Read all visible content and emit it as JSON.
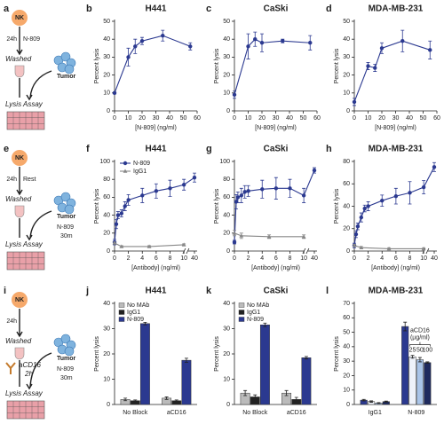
{
  "schematics": [
    {
      "panel": "a",
      "nk": "NK",
      "time": "24h",
      "treatment": "N-809",
      "washed": "Washed",
      "tumor": "Tumor",
      "assay": "Lysis Assay"
    },
    {
      "panel": "e",
      "nk": "NK",
      "time": "24h",
      "treatment": "Rest",
      "washed": "Washed",
      "tumor": "Tumor",
      "tumor_treatment": "N-809",
      "tumor_time": "30m",
      "assay": "Lysis Assay"
    },
    {
      "panel": "i",
      "nk": "NK",
      "time": "24h",
      "washed": "Washed",
      "block": "aCD16",
      "block_time": "2h",
      "tumor": "Tumor",
      "tumor_treatment": "N-809",
      "tumor_time": "30m",
      "assay": "Lysis Assay"
    }
  ],
  "chart_data": [
    {
      "type": "line",
      "panel": "b",
      "title": "H441",
      "xlabel": "[N-809] (ng/ml)",
      "ylabel": "Percent lysis",
      "xlim": [
        0,
        60
      ],
      "xticks": [
        0,
        10,
        20,
        30,
        40,
        50,
        60
      ],
      "ylim": [
        0,
        50
      ],
      "yticks": [
        0,
        10,
        20,
        30,
        40,
        50
      ],
      "series": [
        {
          "color": "#2b3990",
          "marker": "circle",
          "x": [
            0,
            10,
            15,
            20,
            35,
            55
          ],
          "values": [
            10,
            30,
            36,
            39,
            42,
            36
          ],
          "errors": [
            0.5,
            5,
            4,
            2,
            3,
            2
          ]
        }
      ]
    },
    {
      "type": "line",
      "panel": "c",
      "title": "CaSki",
      "xlabel": "[N-809] (ng/ml)",
      "ylabel": "Percent lysis",
      "xlim": [
        0,
        60
      ],
      "xticks": [
        0,
        10,
        20,
        30,
        40,
        50,
        60
      ],
      "ylim": [
        0,
        50
      ],
      "yticks": [
        0,
        10,
        20,
        30,
        40,
        50
      ],
      "series": [
        {
          "color": "#2b3990",
          "marker": "circle",
          "x": [
            0,
            10,
            15,
            20,
            35,
            55
          ],
          "values": [
            9,
            36,
            40,
            38,
            39,
            38
          ],
          "errors": [
            2,
            7,
            4,
            5,
            1,
            4
          ]
        }
      ]
    },
    {
      "type": "line",
      "panel": "d",
      "title": "MDA-MB-231",
      "xlabel": "[N-809] (ng/ml)",
      "ylabel": "Percent lysis",
      "xlim": [
        0,
        60
      ],
      "xticks": [
        0,
        10,
        20,
        30,
        40,
        50,
        60
      ],
      "ylim": [
        0,
        50
      ],
      "yticks": [
        0,
        10,
        20,
        30,
        40,
        50
      ],
      "series": [
        {
          "color": "#2b3990",
          "marker": "circle",
          "x": [
            0,
            10,
            15,
            20,
            35,
            55
          ],
          "values": [
            5,
            25,
            24,
            35,
            39,
            34
          ],
          "errors": [
            2,
            2,
            2,
            3,
            6,
            5
          ]
        }
      ]
    },
    {
      "type": "line",
      "panel": "f",
      "title": "H441",
      "xlabel": "[Antibody] (ng/ml)",
      "ylabel": "Percent lysis",
      "xlim": [
        0,
        40
      ],
      "axis_break": [
        10,
        40
      ],
      "xticks": [
        0,
        2,
        4,
        6,
        8,
        10,
        40
      ],
      "ylim": [
        0,
        100
      ],
      "yticks": [
        0,
        20,
        40,
        60,
        80,
        100
      ],
      "legend": "upper left",
      "series": [
        {
          "name": "N-809",
          "color": "#2b3990",
          "marker": "circle",
          "x": [
            0,
            0.25,
            0.5,
            1,
            1.5,
            2,
            4,
            6,
            8,
            10,
            40
          ],
          "values": [
            10,
            30,
            40,
            42,
            50,
            57,
            62,
            67,
            70,
            74,
            82
          ],
          "errors": [
            3,
            5,
            4,
            4,
            5,
            6,
            8,
            8,
            9,
            6,
            5
          ]
        },
        {
          "name": "IgG1",
          "color": "#888888",
          "marker": "triangle",
          "x": [
            0,
            1,
            5,
            10
          ],
          "values": [
            9,
            5,
            5,
            7
          ],
          "errors": [
            1,
            1,
            1,
            1
          ]
        }
      ]
    },
    {
      "type": "line",
      "panel": "g",
      "title": "CaSki",
      "xlabel": "[Antibody] (ng/ml)",
      "ylabel": "Percent lysis",
      "xlim": [
        0,
        40
      ],
      "axis_break": [
        10,
        40
      ],
      "xticks": [
        0,
        2,
        4,
        6,
        8,
        10,
        40
      ],
      "ylim": [
        0,
        100
      ],
      "yticks": [
        0,
        20,
        40,
        60,
        80,
        100
      ],
      "series": [
        {
          "color": "#2b3990",
          "marker": "circle",
          "x": [
            0,
            0.25,
            0.5,
            1,
            1.5,
            2,
            4,
            6,
            8,
            10,
            40
          ],
          "values": [
            10,
            55,
            60,
            62,
            66,
            67,
            69,
            70,
            70,
            62,
            90
          ],
          "errors": [
            2,
            8,
            6,
            8,
            7,
            6,
            10,
            12,
            10,
            8,
            3
          ]
        },
        {
          "color": "#888888",
          "marker": "triangle",
          "x": [
            0,
            1,
            5,
            10
          ],
          "values": [
            20,
            17,
            16,
            16
          ],
          "errors": [
            3,
            3,
            2,
            2
          ]
        }
      ]
    },
    {
      "type": "line",
      "panel": "h",
      "title": "MDA-MB-231",
      "xlabel": "[Antibody] (ng/ml)",
      "ylabel": "Percent lysis",
      "xlim": [
        0,
        40
      ],
      "axis_break": [
        10,
        40
      ],
      "xticks": [
        0,
        2,
        4,
        6,
        8,
        10,
        40
      ],
      "ylim": [
        0,
        80
      ],
      "yticks": [
        0,
        20,
        40,
        60,
        80
      ],
      "series": [
        {
          "color": "#2b3990",
          "marker": "circle",
          "x": [
            0,
            0.25,
            0.5,
            1,
            1.5,
            2,
            4,
            6,
            8,
            10,
            40
          ],
          "values": [
            5,
            15,
            22,
            30,
            38,
            40,
            45,
            49,
            52,
            57,
            75
          ],
          "errors": [
            2,
            3,
            3,
            4,
            3,
            4,
            5,
            7,
            10,
            6,
            4
          ]
        },
        {
          "color": "#888888",
          "marker": "triangle",
          "x": [
            0,
            1,
            5,
            10
          ],
          "values": [
            5,
            3,
            2,
            2
          ],
          "errors": [
            1,
            1,
            1,
            1
          ]
        }
      ]
    },
    {
      "type": "bar",
      "panel": "j",
      "title": "H441",
      "ylabel": "Percent lysis",
      "categories": [
        "No Block",
        "aCD16"
      ],
      "ylim": [
        0,
        40
      ],
      "yticks": [
        0,
        10,
        20,
        30,
        40
      ],
      "legend": "upper left",
      "series": [
        {
          "name": "No MAb",
          "color": "#bbbbbb",
          "values": [
            2,
            2.5
          ],
          "errors": [
            0.5,
            0.5
          ]
        },
        {
          "name": "IgG1",
          "color": "#222222",
          "values": [
            1.5,
            1.5
          ],
          "errors": [
            0.3,
            0.3
          ]
        },
        {
          "name": "N-809",
          "color": "#2b3990",
          "values": [
            32,
            17.5
          ],
          "errors": [
            0.5,
            0.8
          ]
        }
      ]
    },
    {
      "type": "bar",
      "panel": "k",
      "title": "CaSki",
      "ylabel": "Percent lysis",
      "categories": [
        "No Block",
        "aCD16"
      ],
      "ylim": [
        0,
        40
      ],
      "yticks": [
        0,
        10,
        20,
        30,
        40
      ],
      "legend": "upper left",
      "series": [
        {
          "name": "No MAb",
          "color": "#bbbbbb",
          "values": [
            4.5,
            4.5
          ],
          "errors": [
            1,
            1
          ]
        },
        {
          "name": "IgG1",
          "color": "#222222",
          "values": [
            3,
            2
          ],
          "errors": [
            0.8,
            0.8
          ]
        },
        {
          "name": "N-809",
          "color": "#2b3990",
          "values": [
            31.5,
            18.5
          ],
          "errors": [
            0.7,
            0.5
          ]
        }
      ]
    },
    {
      "type": "bar",
      "panel": "l",
      "title": "MDA-MB-231",
      "ylabel": "Percent lysis",
      "categories": [
        "IgG1",
        "N-809"
      ],
      "ylim": [
        0,
        70
      ],
      "yticks": [
        0,
        10,
        20,
        30,
        40,
        50,
        60,
        70
      ],
      "annotation": [
        "aCD16",
        "(µg/ml)"
      ],
      "series": [
        {
          "color": "#2b3990",
          "values": [
            3,
            54
          ],
          "errors": [
            0.5,
            3
          ]
        },
        {
          "name": "25",
          "color": "#eef2fa",
          "values": [
            2,
            33
          ],
          "errors": [
            0.5,
            1
          ]
        },
        {
          "name": "50",
          "color": "#a9c4e8",
          "values": [
            1,
            31
          ],
          "errors": [
            0.3,
            1.5
          ]
        },
        {
          "name": "100",
          "color": "#1e2a5e",
          "values": [
            2,
            29
          ],
          "errors": [
            0.4,
            0.5
          ]
        }
      ]
    }
  ]
}
